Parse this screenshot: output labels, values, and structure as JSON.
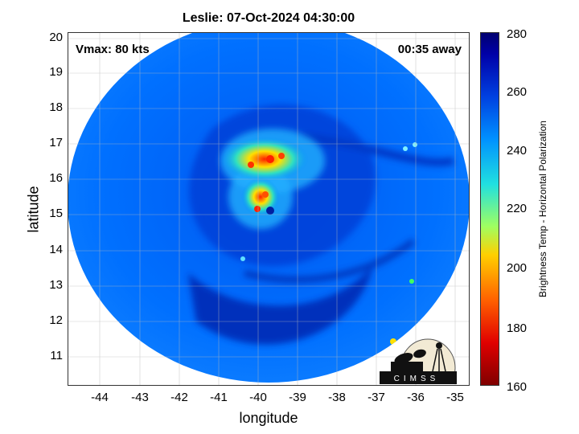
{
  "title": "Leslie: 07-Oct-2024 04:30:00",
  "vmax_label": "Vmax: 80 kts",
  "time_away": "00:35 away",
  "xlabel": "longitude",
  "ylabel": "latitude",
  "x_ticks": [
    "-44",
    "-43",
    "-42",
    "-41",
    "-40",
    "-39",
    "-38",
    "-37",
    "-36",
    "-35"
  ],
  "y_ticks": [
    "20",
    "19",
    "18",
    "17",
    "16",
    "15",
    "14",
    "13",
    "12",
    "11"
  ],
  "colorbar": {
    "label": "Brightness Temp - Horizontal Polarization",
    "ticks": [
      "280",
      "260",
      "240",
      "220",
      "200",
      "180",
      "160"
    ]
  },
  "logo_text": "CIMSS",
  "map": {
    "lon_range": [
      -44.8,
      -34.6
    ],
    "lat_range": [
      10.2,
      20.2
    ],
    "storm_center": {
      "lon": -40.0,
      "lat": 15.1
    }
  },
  "colors": {
    "cold_core": "#e00000",
    "warm_bg": "#0060f0",
    "dark_band": "#0020a0"
  }
}
